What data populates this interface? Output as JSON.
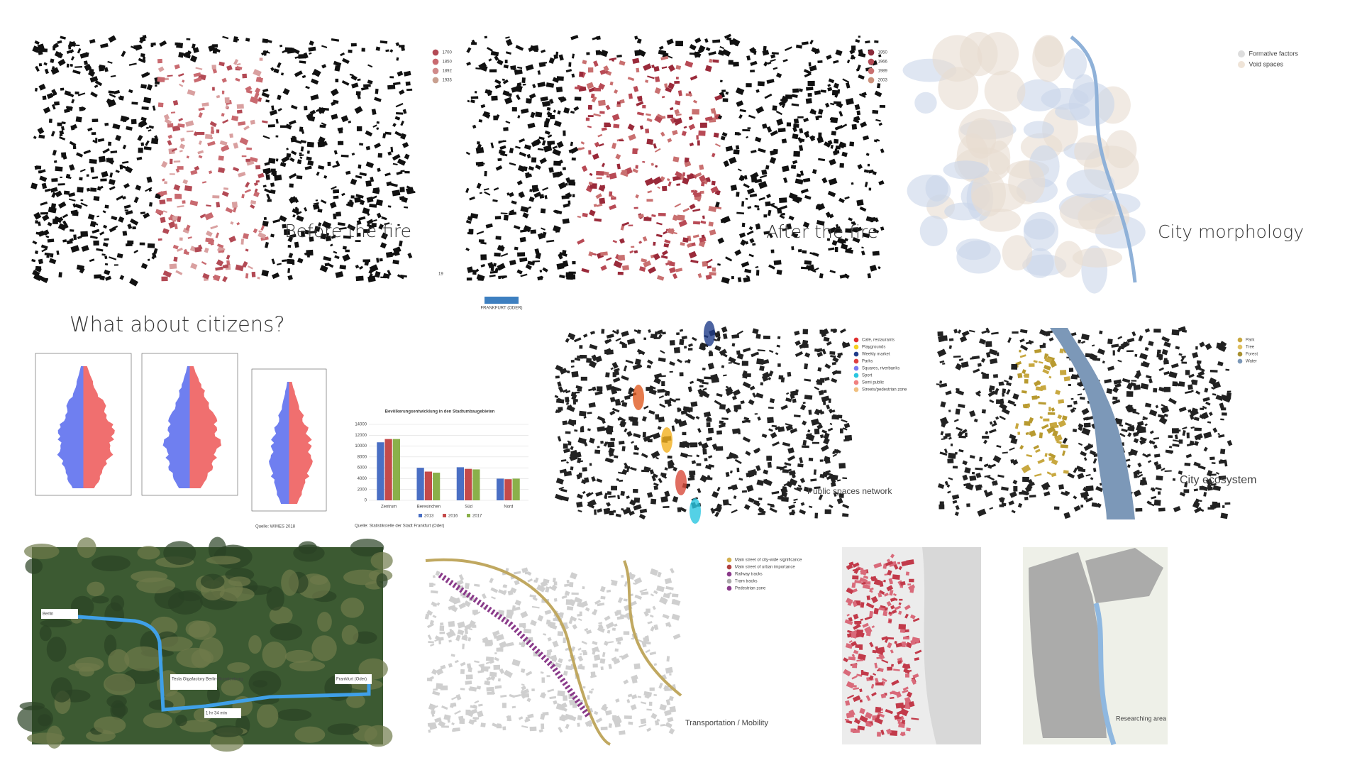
{
  "maps": {
    "before_fire": {
      "label": "Before the fire",
      "legend": [
        "1700",
        "1850",
        "1892",
        "1935"
      ],
      "page_number": "19"
    },
    "after_fire": {
      "label": "After the fire",
      "legend": [
        "1950",
        "1966",
        "1989",
        "2003"
      ]
    },
    "morphology": {
      "label": "City morphology",
      "legend": [
        "Formative factors",
        "Void spaces"
      ]
    },
    "public_spaces": {
      "label": "Public spaces network",
      "legend": [
        "Café, restaurants",
        "Playgrounds",
        "Weekly market",
        "Parks",
        "Squares, riverbanks",
        "Sport",
        "Semi public",
        "Streets/pedestrian zone"
      ]
    },
    "ecosystem": {
      "label": "City ecosystem",
      "legend": [
        "Park",
        "Tree",
        "Forest",
        "Water"
      ]
    },
    "route": {
      "labels": [
        "Berlin",
        "Tesla Gigafactory Berlin-Brandenburg",
        "1 hr 34 min",
        "Frankfurt (Oder)"
      ]
    },
    "transport": {
      "label": "Transportation / Mobility",
      "legend": [
        "Main street of city-wide significance",
        "Main street of urban importance",
        "Railway tracks",
        "Tram tracks",
        "Pedestrian zone"
      ]
    },
    "research": {
      "label": "Researching area"
    }
  },
  "logo": "FRANKFURT (ODER)",
  "citizens": {
    "title": "What about citizens?",
    "source": "Quelle: WIMES 2018"
  },
  "chart_data": {
    "type": "bar",
    "title": "Bevölkerungsentwicklung in den Stadtumbaugebieten",
    "categories": [
      "Zentrum",
      "Beresinchen",
      "Süd",
      "Nord"
    ],
    "series": [
      {
        "name": "2013",
        "color": "#4a6fc4",
        "values": [
          10700,
          6000,
          6100,
          4000
        ]
      },
      {
        "name": "2016",
        "color": "#c44a4a",
        "values": [
          11300,
          5300,
          5800,
          3900
        ]
      },
      {
        "name": "2017",
        "color": "#8ab04a",
        "values": [
          11300,
          5100,
          5700,
          4000
        ]
      }
    ],
    "ylim": [
      0,
      14000
    ],
    "yticks": [
      0,
      2000,
      4000,
      6000,
      8000,
      10000,
      12000,
      14000
    ],
    "grid": true,
    "source": "Quelle: Statistikstelle der Stadt Frankfurt (Oder)"
  }
}
